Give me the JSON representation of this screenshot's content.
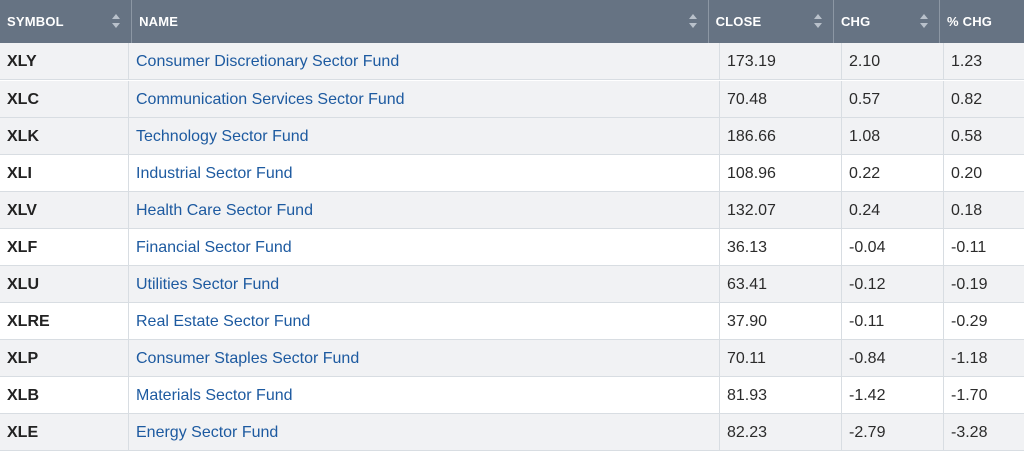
{
  "headers": {
    "symbol": "SYMBOL",
    "name": "NAME",
    "close": "CLOSE",
    "chg": "CHG",
    "pct_chg": "% CHG"
  },
  "rows": [
    {
      "symbol": "XLY",
      "name": "Consumer Discretionary Sector Fund",
      "close": "173.19",
      "chg": "2.10",
      "pct_chg": "1.23"
    },
    {
      "symbol": "XLC",
      "name": "Communication Services Sector Fund",
      "close": "70.48",
      "chg": "0.57",
      "pct_chg": "0.82"
    },
    {
      "symbol": "XLK",
      "name": "Technology Sector Fund",
      "close": "186.66",
      "chg": "1.08",
      "pct_chg": "0.58"
    },
    {
      "symbol": "XLI",
      "name": "Industrial Sector Fund",
      "close": "108.96",
      "chg": "0.22",
      "pct_chg": "0.20"
    },
    {
      "symbol": "XLV",
      "name": "Health Care Sector Fund",
      "close": "132.07",
      "chg": "0.24",
      "pct_chg": "0.18"
    },
    {
      "symbol": "XLF",
      "name": "Financial Sector Fund",
      "close": "36.13",
      "chg": "-0.04",
      "pct_chg": "-0.11"
    },
    {
      "symbol": "XLU",
      "name": "Utilities Sector Fund",
      "close": "63.41",
      "chg": "-0.12",
      "pct_chg": "-0.19"
    },
    {
      "symbol": "XLRE",
      "name": "Real Estate Sector Fund",
      "close": "37.90",
      "chg": "-0.11",
      "pct_chg": "-0.29"
    },
    {
      "symbol": "XLP",
      "name": "Consumer Staples Sector Fund",
      "close": "70.11",
      "chg": "-0.84",
      "pct_chg": "-1.18"
    },
    {
      "symbol": "XLB",
      "name": "Materials Sector Fund",
      "close": "81.93",
      "chg": "-1.42",
      "pct_chg": "-1.70"
    },
    {
      "symbol": "XLE",
      "name": "Energy Sector Fund",
      "close": "82.23",
      "chg": "-2.79",
      "pct_chg": "-3.28"
    }
  ],
  "colors": {
    "header_bg": "#667383",
    "row_shade": "#f1f2f4",
    "link": "#1d5aa0"
  }
}
